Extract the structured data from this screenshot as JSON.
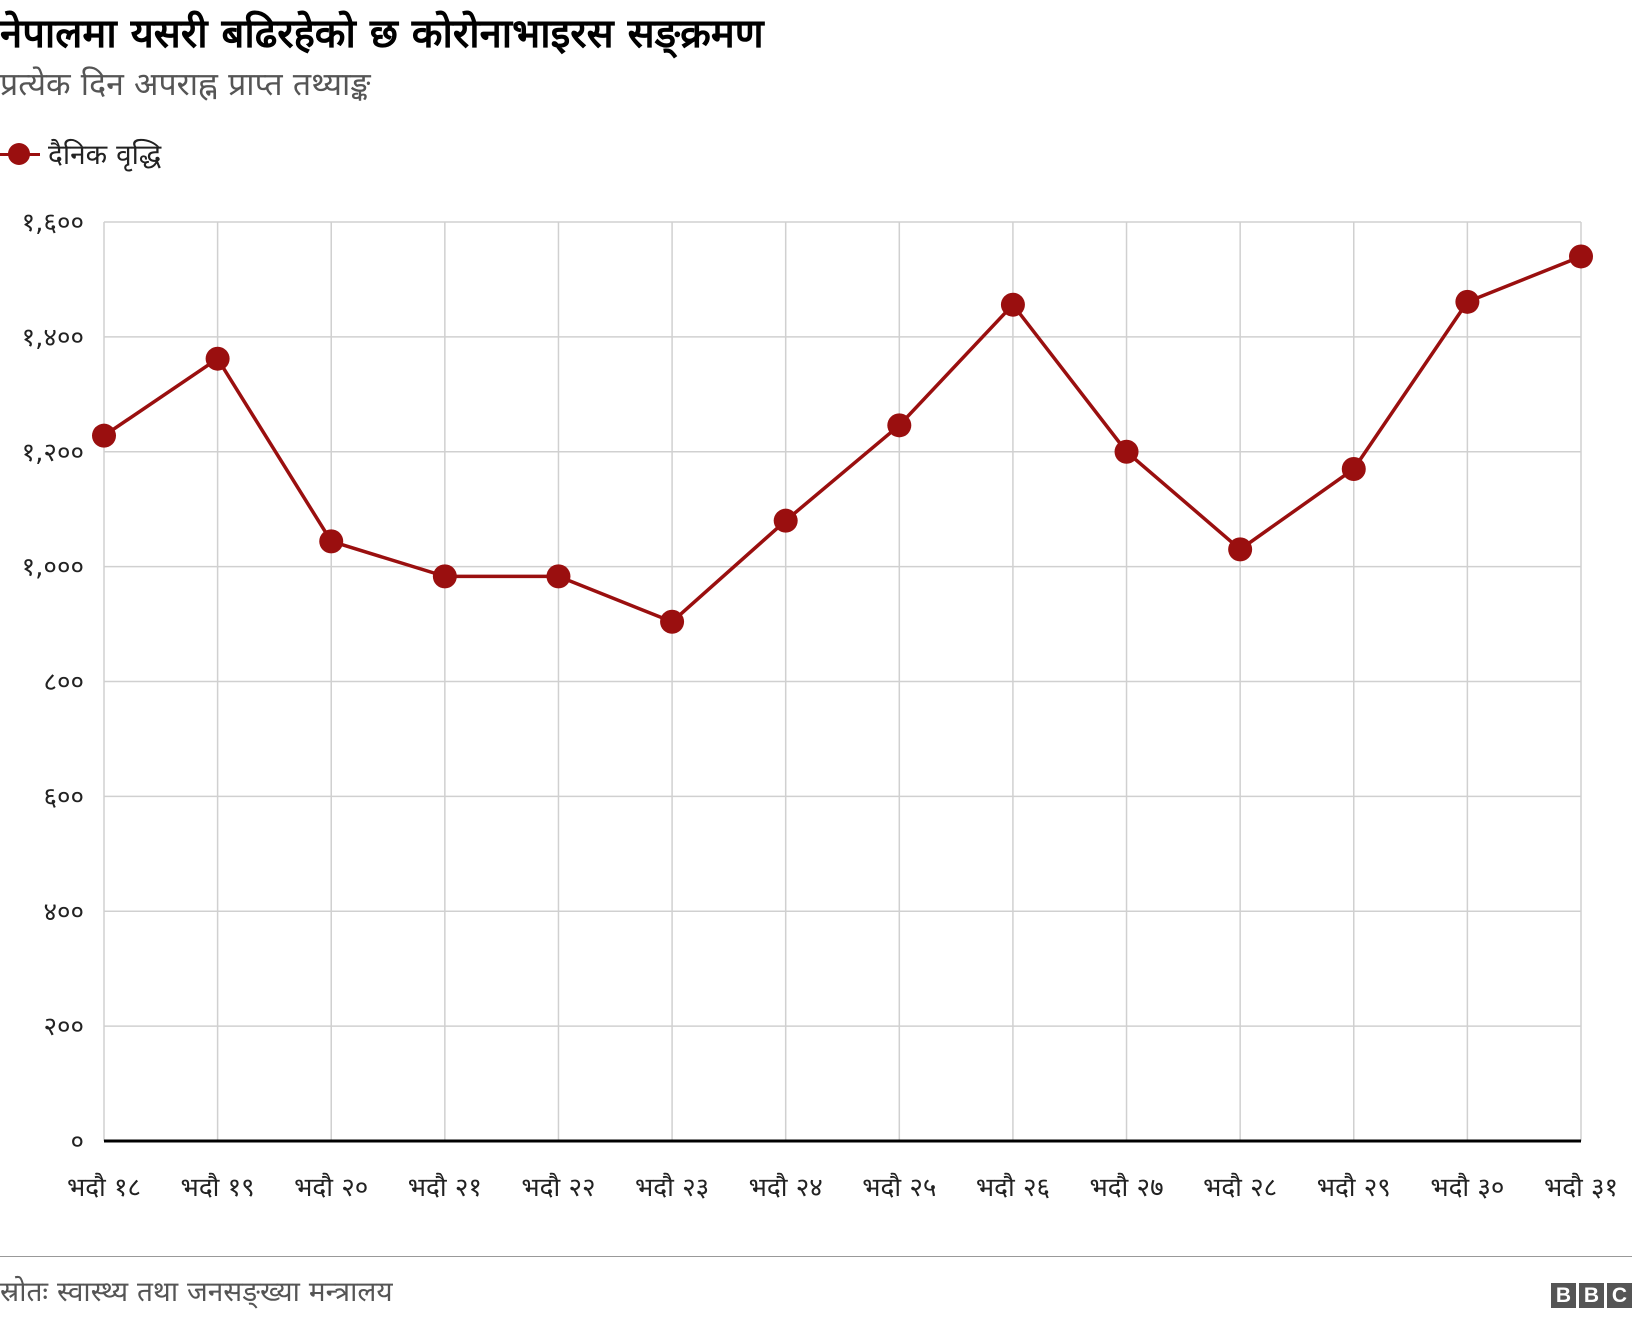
{
  "header": {
    "title": "नेपालमा यसरी बढिरहेको छ कोरोनाभाइरस सङ्क्रमण",
    "subtitle": "प्रत्येक दिन अपराह्न प्राप्त तथ्याङ्क"
  },
  "footer": {
    "source": "स्रोतः स्वास्थ्य तथा जनसङ्ख्या मन्त्रालय",
    "logo_letters": [
      "B",
      "B",
      "C"
    ]
  },
  "chart_data": {
    "type": "line",
    "title": "नेपालमा यसरी बढिरहेको छ कोरोनाभाइरस सङ्क्रमण",
    "subtitle": "प्रत्येक दिन अपराह्न प्राप्त तथ्याङ्क",
    "categories": [
      "भदौ १८",
      "भदौ १९",
      "भदौ २०",
      "भदौ २१",
      "भदौ २२",
      "भदौ २३",
      "भदौ २४",
      "भदौ २५",
      "भदौ २६",
      "भदौ २७",
      "भदौ २८",
      "भदौ २९",
      "भदौ ३०",
      "भदौ ३१"
    ],
    "series": [
      {
        "name": "दैनिक वृद्धि",
        "color": "#9a0f0f",
        "values": [
          1228,
          1362,
          1044,
          983,
          983,
          904,
          1080,
          1246,
          1456,
          1200,
          1030,
          1170,
          1461,
          1540
        ]
      }
    ],
    "yticks": [
      0,
      200,
      400,
      600,
      800,
      1000,
      1200,
      1400,
      1600
    ],
    "ytick_labels": [
      "०",
      "२००",
      "४००",
      "६००",
      "८००",
      "१,०००",
      "१,२००",
      "१,४००",
      "१,६००"
    ],
    "ylim": [
      0,
      1600
    ],
    "grid": true,
    "legend_position": "top-left",
    "xlabel": "",
    "ylabel": ""
  }
}
